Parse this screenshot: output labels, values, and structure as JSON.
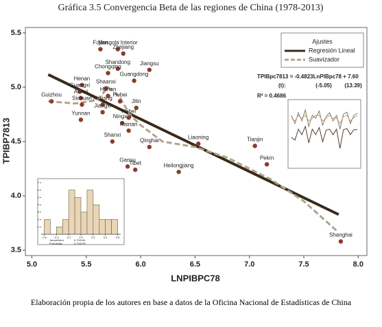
{
  "caption": "Elaboración propia de los autores en base a datos de la Oficina Nacional de Estadísticas de China",
  "chart_data": [
    {
      "type": "scatter",
      "title": "Gráfica 3.5 Convergencia Beta de las regiones de China (1978-2013)",
      "xlabel": "LNPIBPC78",
      "ylabel": "TPIBP7813",
      "xlim": [
        4.94,
        8.08
      ],
      "ylim": [
        3.45,
        5.55
      ],
      "xticks": [
        {
          "value": 5,
          "label": "5.0"
        },
        5.5,
        {
          "value": 6,
          "label": "6.0"
        },
        6.5,
        {
          "value": 7,
          "label": "7.0"
        },
        7.5,
        {
          "value": 8,
          "label": "8.0"
        }
      ],
      "yticks": [
        3.5,
        {
          "value": 4,
          "label": "4.0"
        },
        4.5,
        {
          "value": 5,
          "label": "5.0"
        },
        5.5
      ],
      "points": {
        "color": "#8b3b2b",
        "labels": [
          "Fujian",
          "Mongola Interior",
          "Zhejiang",
          "Shandong",
          "Jiangsu",
          "Chongqing",
          "Guangdong",
          "Henan",
          "Shaanxi",
          "Guizhou",
          "Guangxi",
          "Anhui",
          "Hunan",
          "Hubei",
          "Jilin",
          "Xinjiang",
          "Sichuan",
          "Jiangxi",
          "Yunnan",
          "Ningxia",
          "Hebei",
          "Hainan",
          "Shanxi",
          "Qinghai",
          "Liaoning",
          "Tianjin",
          "Pekín",
          "Gansu",
          "Tibet",
          "Heilongjiang",
          "Shanghai"
        ],
        "x": [
          5.63,
          5.79,
          5.84,
          5.79,
          6.08,
          5.7,
          5.94,
          5.46,
          5.68,
          5.18,
          5.44,
          5.45,
          5.7,
          5.81,
          5.96,
          5.65,
          5.46,
          5.65,
          5.45,
          5.83,
          5.89,
          5.89,
          5.74,
          6.08,
          6.53,
          7.05,
          7.16,
          5.88,
          5.95,
          6.35,
          7.84
        ],
        "values": [
          5.35,
          5.35,
          5.31,
          5.17,
          5.16,
          5.13,
          5.06,
          5.02,
          4.99,
          4.87,
          4.96,
          4.9,
          4.92,
          4.87,
          4.81,
          4.84,
          4.84,
          4.77,
          4.7,
          4.67,
          4.72,
          4.6,
          4.5,
          4.45,
          4.48,
          4.46,
          4.29,
          4.27,
          4.24,
          4.22,
          3.58
        ]
      },
      "legend_title": "Ajustes",
      "series": [
        {
          "name": "Regresión Lineal",
          "color": "#3b2a1a",
          "x": [
            5.15,
            7.82
          ],
          "values": [
            5.116,
            3.828
          ]
        },
        {
          "name": "Suavizador",
          "color": "#b0a48c",
          "dashed": true,
          "x": [
            5.15,
            5.4,
            5.6,
            5.7,
            5.8,
            5.9,
            6.0,
            6.2,
            6.5,
            6.8,
            7.2,
            7.5,
            7.8
          ],
          "values": [
            4.87,
            4.85,
            4.88,
            5.0,
            4.92,
            4.75,
            4.65,
            4.5,
            4.45,
            4.35,
            4.15,
            3.95,
            3.68
          ]
        }
      ],
      "equation": [
        "TPIBpc7813 = -0.4823LnPIBpc78 + 7.60",
        "(t):",
        "(-5.05)",
        "(13.39)",
        "R² = 0.4686"
      ]
    },
    {
      "type": "histogram",
      "xlim": [
        -0.65,
        0.65
      ],
      "ylim": [
        0,
        7
      ],
      "xticks": [
        -0.6,
        -0.4,
        -0.2,
        {
          "value": 0,
          "label": "0.0"
        },
        0.2,
        0.4,
        0.6
      ],
      "yticks": [
        1,
        2,
        3,
        4,
        5,
        6,
        7
      ],
      "bins": [
        -0.6,
        -0.5,
        -0.4,
        -0.3,
        -0.2,
        -0.1,
        0,
        0.1,
        0.2,
        0.3,
        0.4,
        0.5,
        0.6
      ],
      "counts": [
        2,
        0,
        1,
        2,
        6,
        5,
        3,
        6,
        4,
        2,
        2,
        2
      ],
      "color": "#e8d6b6",
      "stats": [
        "JarqueBera",
        "Probability"
      ],
      "stat_values": [
        "0.704116",
        "0.703239"
      ]
    },
    {
      "type": "line",
      "ylim": [
        -0.5,
        0.5
      ],
      "series": [
        {
          "color": "#7a6a50",
          "values": [
            0.3,
            0.15,
            0.35,
            0.2,
            0.4,
            0.1,
            0.3,
            0.25,
            0.38,
            0.12,
            0.28,
            0.35,
            0.2,
            0.3,
            0.05,
            0.32,
            0.36,
            0.15,
            0.3,
            0.34
          ]
        },
        {
          "color": "#b8a070",
          "values": [
            0.25,
            0.2,
            0.3,
            0.25,
            0.3,
            0.2,
            0.25,
            0.3,
            0.3,
            0.2,
            0.25,
            0.3,
            0.25,
            0.25,
            0.15,
            0.28,
            0.3,
            0.2,
            0.26,
            0.3
          ]
        },
        {
          "color": "#3b2a1a",
          "values": [
            -0.1,
            -0.15,
            0.05,
            -0.05,
            0.1,
            -0.2,
            0.05,
            -0.05,
            0.08,
            -0.18,
            0.03,
            0.05,
            -0.05,
            0.05,
            -0.3,
            0.04,
            0.06,
            -0.05,
            0.04,
            0.04
          ]
        }
      ]
    }
  ]
}
